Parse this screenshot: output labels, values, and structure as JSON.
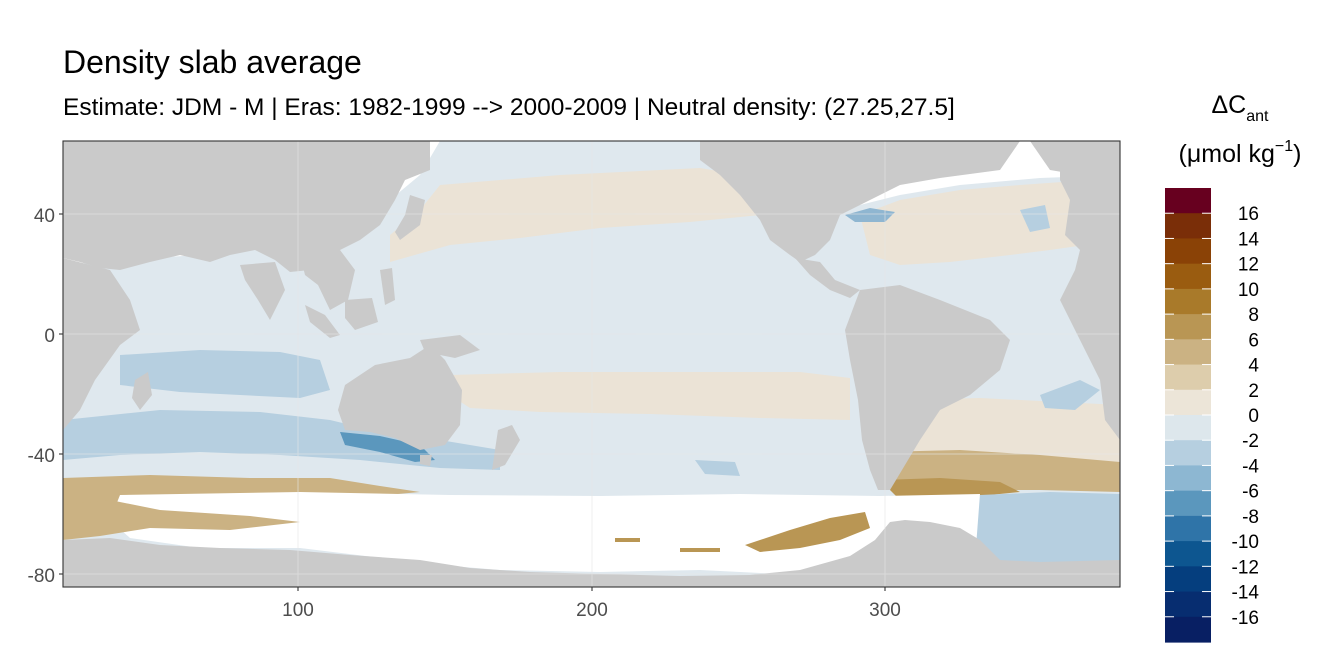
{
  "title": "Density slab average",
  "subtitle": "Estimate: JDM - M | Eras: 1982-1999 --> 2000-2009 | Neutral density: (27.25,27.5]",
  "map": {
    "x_ticks": [
      "100",
      "200",
      "300"
    ],
    "y_ticks": [
      "40",
      "0",
      "-40",
      "-80"
    ],
    "colors": {
      "land": "#cacaca",
      "no_data": "#ffffff",
      "panel_border": "#333333",
      "grid": "#e6e6e6"
    }
  },
  "legend": {
    "title_prefix": "ΔC",
    "title_subscript": "ant",
    "unit_prefix": "(μmol kg",
    "unit_superscript": "−1",
    "unit_suffix": ")",
    "labels": [
      "16",
      "14",
      "12",
      "10",
      "8",
      "6",
      "4",
      "2",
      "0",
      "-2",
      "-4",
      "-6",
      "-8",
      "-10",
      "-12",
      "-14",
      "-16"
    ],
    "colors": [
      "#67001f",
      "#7a2e08",
      "#8a4206",
      "#9a5c10",
      "#a97a2a",
      "#b99654",
      "#cbb283",
      "#ddcdac",
      "#ece5d8",
      "#dde7ec",
      "#b6cfe0",
      "#8db7d2",
      "#5b97bd",
      "#2f74a8",
      "#0d5690",
      "#053e7e",
      "#072d70",
      "#081f63"
    ]
  }
}
